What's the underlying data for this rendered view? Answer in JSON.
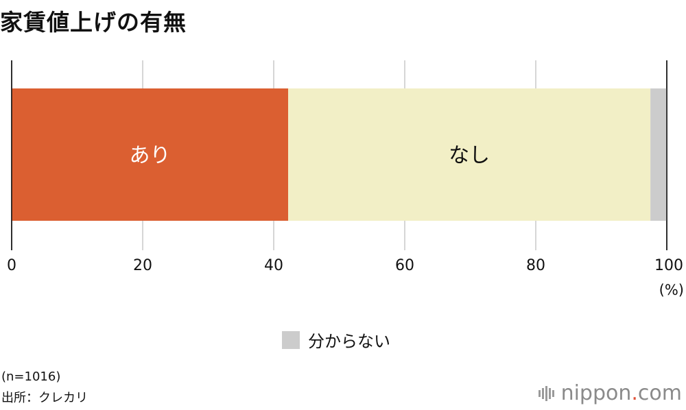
{
  "title": "家賃値上げの有無",
  "chart_data": {
    "type": "bar",
    "orientation": "horizontal-stacked",
    "xlim": [
      0,
      100
    ],
    "x_ticks": [
      0,
      20,
      40,
      60,
      80,
      100
    ],
    "unit": "(%)",
    "grid": true,
    "segments": [
      {
        "label": "あり",
        "value": 42.2,
        "color": "#db5f31",
        "label_color": "#ffffff"
      },
      {
        "label": "なし",
        "value": 55.3,
        "color": "#f2efc6",
        "label_color": "#111111"
      },
      {
        "label": "分からない",
        "value": 2.5,
        "color": "#cccccc",
        "label_color": "#111111"
      }
    ],
    "legend": {
      "label": "分からない",
      "color": "#cccccc",
      "placement": "bottom-center"
    }
  },
  "footnote": {
    "n": "(n=1016)",
    "source": "出所：クレカリ"
  },
  "logo": {
    "brand": "nippon",
    "dot": ".",
    "tld": "com"
  }
}
